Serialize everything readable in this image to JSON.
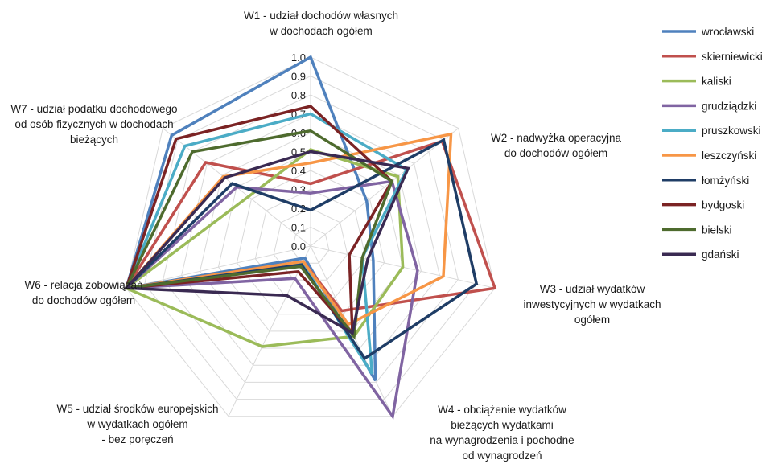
{
  "chart_data": {
    "type": "radar",
    "axes": [
      {
        "lines": [
          "W1 - udział dochodów własnych",
          "w dochodach ogółem"
        ]
      },
      {
        "lines": [
          "W2 - nadwyżka operacyjna",
          "do dochodów ogółem"
        ]
      },
      {
        "lines": [
          "W3 - udział wydatków",
          "inwestycyjnych w wydatkach",
          "ogółem"
        ]
      },
      {
        "lines": [
          "W4 - obciążenie wydatków",
          "bieżących wydatkami",
          "na wynagrodzenia i pochodne",
          "od wynagrodzeń"
        ]
      },
      {
        "lines": [
          "W5 - udział środków europejskich",
          "w wydatkach ogółem",
          "- bez poręczeń"
        ]
      },
      {
        "lines": [
          "W6 - relacja zobowiązań",
          "do dochodów ogółem"
        ]
      },
      {
        "lines": [
          "W7 - udział podatku dochodowego",
          "od osób fizycznych w dochodach",
          "bieżących"
        ]
      }
    ],
    "ticks": [
      "0.0",
      "0.1",
      "0.2",
      "0.3",
      "0.4",
      "0.5",
      "0.6",
      "0.7",
      "0.8",
      "0.9",
      "1.0"
    ],
    "rlim": [
      0,
      1
    ],
    "grid": true,
    "legend_position": "right",
    "series": [
      {
        "name": "wrocławski",
        "color": "#4f81bd",
        "values": [
          1.0,
          0.38,
          0.34,
          0.79,
          0.07,
          1.0,
          0.94
        ]
      },
      {
        "name": "skierniewicki",
        "color": "#c0504d",
        "values": [
          0.33,
          0.89,
          1.0,
          0.38,
          0.09,
          1.0,
          0.71
        ]
      },
      {
        "name": "kaliski",
        "color": "#9bbb59",
        "values": [
          0.51,
          0.59,
          0.5,
          0.53,
          0.59,
          1.0,
          0.42
        ]
      },
      {
        "name": "grudziądzki",
        "color": "#8064a2",
        "values": [
          0.28,
          0.55,
          0.58,
          1.0,
          0.19,
          1.0,
          0.5
        ]
      },
      {
        "name": "pruszkowski",
        "color": "#4bacc6",
        "values": [
          0.7,
          0.65,
          0.28,
          0.75,
          0.1,
          1.0,
          0.85
        ]
      },
      {
        "name": "leszczyński",
        "color": "#f79646",
        "values": [
          0.44,
          0.95,
          0.72,
          0.46,
          0.09,
          1.0,
          0.59
        ]
      },
      {
        "name": "łomżyński",
        "color": "#1f3d66",
        "values": [
          0.19,
          0.9,
          0.9,
          0.66,
          0.11,
          1.0,
          0.53
        ]
      },
      {
        "name": "bydgoski",
        "color": "#7b2324",
        "values": [
          0.74,
          0.55,
          0.21,
          0.51,
          0.15,
          1.0,
          0.91
        ]
      },
      {
        "name": "bielski",
        "color": "#4e6b2e",
        "values": [
          0.61,
          0.55,
          0.28,
          0.53,
          0.12,
          1.0,
          0.8
        ]
      },
      {
        "name": "gdański",
        "color": "#3a2a52",
        "values": [
          0.5,
          0.66,
          0.31,
          0.51,
          0.29,
          1.0,
          0.58
        ]
      }
    ]
  }
}
